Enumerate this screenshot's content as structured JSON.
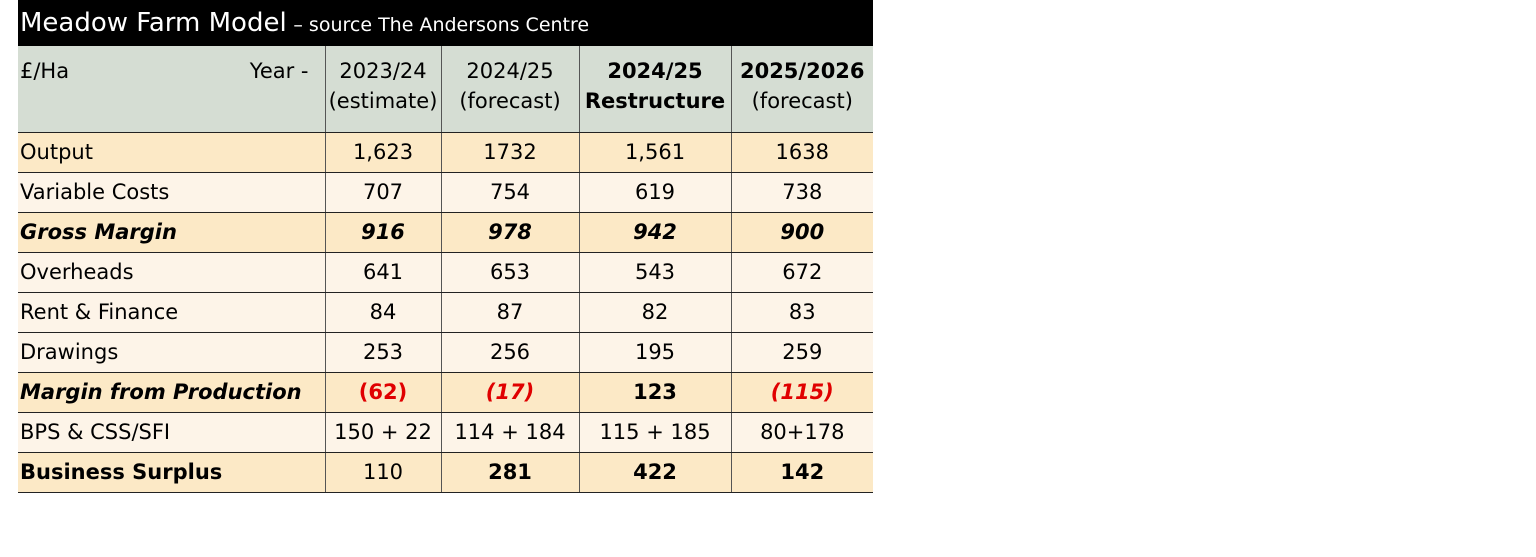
{
  "title": {
    "main": "Meadow Farm Model",
    "source": "– source The Andersons Centre"
  },
  "header": {
    "unit": "£/Ha",
    "year_label": "Year -",
    "columns": [
      {
        "year": "2023/24",
        "note": "(estimate)"
      },
      {
        "year": "2024/25",
        "note": "(forecast)"
      },
      {
        "year": "2024/25",
        "note": "Restructure"
      },
      {
        "year": "2025/2026",
        "note": "(forecast)"
      }
    ]
  },
  "rows": [
    {
      "label": "Output",
      "values": [
        "1,623",
        "1732",
        "1,561",
        "1638"
      ]
    },
    {
      "label": "Variable Costs",
      "values": [
        "707",
        "754",
        "619",
        "738"
      ]
    },
    {
      "label": "Gross Margin",
      "values": [
        "916",
        "978",
        "942",
        "900"
      ]
    },
    {
      "label": "Overheads",
      "values": [
        "641",
        "653",
        "543",
        "672"
      ]
    },
    {
      "label": "Rent & Finance",
      "values": [
        "84",
        "87",
        "82",
        "83"
      ]
    },
    {
      "label": "Drawings",
      "values": [
        "253",
        "256",
        "195",
        "259"
      ]
    },
    {
      "label": "Margin from Production",
      "values": [
        "(62)",
        "(17)",
        "123",
        "(115)"
      ]
    },
    {
      "label": "BPS & CSS/SFI",
      "values": [
        "150 + 22",
        "114 + 184",
        "115 + 185",
        "80+178"
      ]
    },
    {
      "label": "Business Surplus",
      "values": [
        "110",
        "281",
        "422",
        "142"
      ]
    }
  ]
}
